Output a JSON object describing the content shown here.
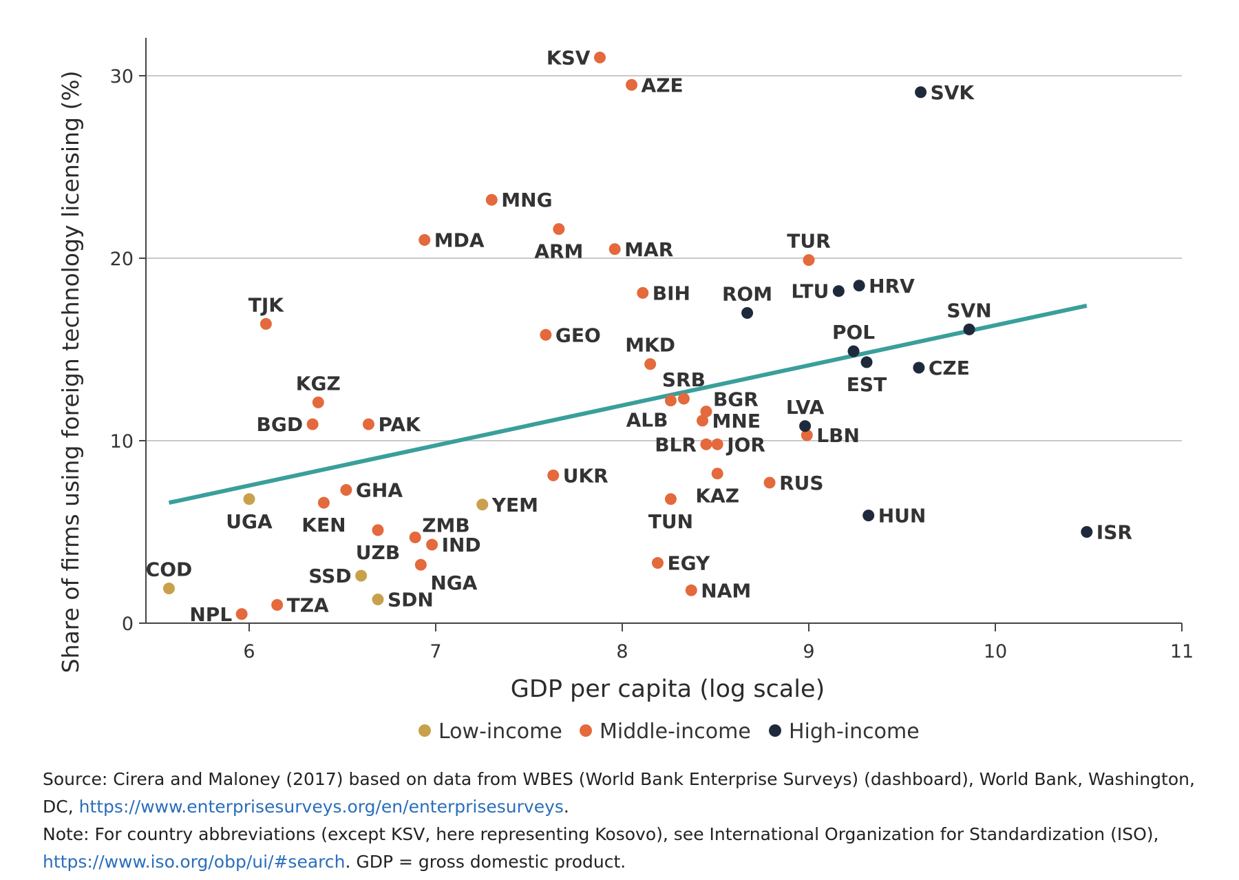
{
  "chart_data": {
    "type": "scatter",
    "xlabel": "GDP per capita (log scale)",
    "ylabel": "Share of firms using foreign technology licensing (%)",
    "xlim": [
      5.5,
      11
    ],
    "ylim": [
      0,
      32
    ],
    "xticks": [
      6,
      7,
      8,
      9,
      10,
      11
    ],
    "yticks": [
      0,
      10,
      20,
      30
    ],
    "grid": "horizontal",
    "legend": "bottom",
    "colors": {
      "Low-income": "#c9a04c",
      "Middle-income": "#e4693c",
      "High-income": "#1e2a3c",
      "trend": "#3a9f9a"
    },
    "series": [
      {
        "name": "Low-income",
        "points": [
          {
            "label": "COD",
            "x": 5.57,
            "y": 1.9
          },
          {
            "label": "UGA",
            "x": 6.0,
            "y": 6.8
          },
          {
            "label": "SSD",
            "x": 6.6,
            "y": 2.6
          },
          {
            "label": "SDN",
            "x": 6.69,
            "y": 1.3
          },
          {
            "label": "YEM",
            "x": 7.25,
            "y": 6.5
          }
        ]
      },
      {
        "name": "Middle-income",
        "points": [
          {
            "label": "NPL",
            "x": 5.96,
            "y": 0.5
          },
          {
            "label": "TZA",
            "x": 6.15,
            "y": 1.0
          },
          {
            "label": "TJK",
            "x": 6.09,
            "y": 16.4
          },
          {
            "label": "KGZ",
            "x": 6.37,
            "y": 12.1
          },
          {
            "label": "BGD",
            "x": 6.34,
            "y": 10.9
          },
          {
            "label": "KEN",
            "x": 6.4,
            "y": 6.6
          },
          {
            "label": "GHA",
            "x": 6.52,
            "y": 7.3
          },
          {
            "label": "PAK",
            "x": 6.64,
            "y": 10.9
          },
          {
            "label": "UZB",
            "x": 6.69,
            "y": 5.1
          },
          {
            "label": "ZMB",
            "x": 6.89,
            "y": 4.7
          },
          {
            "label": "NGA",
            "x": 6.92,
            "y": 3.2
          },
          {
            "label": "IND",
            "x": 6.98,
            "y": 4.3
          },
          {
            "label": "MDA",
            "x": 6.94,
            "y": 21.0
          },
          {
            "label": "MNG",
            "x": 7.3,
            "y": 23.2
          },
          {
            "label": "GEO",
            "x": 7.59,
            "y": 15.8
          },
          {
            "label": "UKR",
            "x": 7.63,
            "y": 8.1
          },
          {
            "label": "ARM",
            "x": 7.66,
            "y": 21.6
          },
          {
            "label": "KSV",
            "x": 7.88,
            "y": 31.0
          },
          {
            "label": "MAR",
            "x": 7.96,
            "y": 20.5
          },
          {
            "label": "AZE",
            "x": 8.05,
            "y": 29.5
          },
          {
            "label": "BIH",
            "x": 8.11,
            "y": 18.1
          },
          {
            "label": "MKD",
            "x": 8.15,
            "y": 14.2
          },
          {
            "label": "EGY",
            "x": 8.19,
            "y": 3.3
          },
          {
            "label": "ALB",
            "x": 8.26,
            "y": 12.2
          },
          {
            "label": "TUN",
            "x": 8.26,
            "y": 6.8
          },
          {
            "label": "SRB",
            "x": 8.33,
            "y": 12.3
          },
          {
            "label": "NAM",
            "x": 8.37,
            "y": 1.8
          },
          {
            "label": "MNE",
            "x": 8.43,
            "y": 11.1
          },
          {
            "label": "BGR",
            "x": 8.45,
            "y": 11.6
          },
          {
            "label": "BLR",
            "x": 8.45,
            "y": 9.8
          },
          {
            "label": "JOR",
            "x": 8.51,
            "y": 9.8
          },
          {
            "label": "KAZ",
            "x": 8.51,
            "y": 8.2
          },
          {
            "label": "RUS",
            "x": 8.79,
            "y": 7.7
          },
          {
            "label": "LBN",
            "x": 8.99,
            "y": 10.3
          },
          {
            "label": "TUR",
            "x": 9.0,
            "y": 19.9
          }
        ]
      },
      {
        "name": "High-income",
        "points": [
          {
            "label": "ROM",
            "x": 8.67,
            "y": 17.0
          },
          {
            "label": "LVA",
            "x": 8.98,
            "y": 10.8
          },
          {
            "label": "LTU",
            "x": 9.16,
            "y": 18.2
          },
          {
            "label": "POL",
            "x": 9.24,
            "y": 14.9
          },
          {
            "label": "HRV",
            "x": 9.27,
            "y": 18.5
          },
          {
            "label": "EST",
            "x": 9.31,
            "y": 14.3
          },
          {
            "label": "HUN",
            "x": 9.32,
            "y": 5.9
          },
          {
            "label": "CZE",
            "x": 9.59,
            "y": 14.0
          },
          {
            "label": "SVK",
            "x": 9.6,
            "y": 29.1
          },
          {
            "label": "SVN",
            "x": 9.86,
            "y": 16.1
          },
          {
            "label": "ISR",
            "x": 10.49,
            "y": 5.0
          }
        ]
      }
    ],
    "trendline": {
      "x": [
        5.57,
        10.49
      ],
      "y": [
        6.6,
        17.4
      ]
    }
  },
  "notes": {
    "source_text": "Source: Cirera and Maloney (2017) based on data from WBES (World Bank Enterprise Surveys) (dashboard), World Bank, Washington, DC, ",
    "source_link": "https://www.enterprisesurveys.org/en/enterprisesurveys",
    "source_end": ".",
    "note_text": "Note: For country abbreviations (except KSV, here representing Kosovo), see International Organization for Standardization (ISO), ",
    "note_link": "https://www.iso.org/obp/ui/#search",
    "note_end": ". GDP = gross domestic product."
  }
}
